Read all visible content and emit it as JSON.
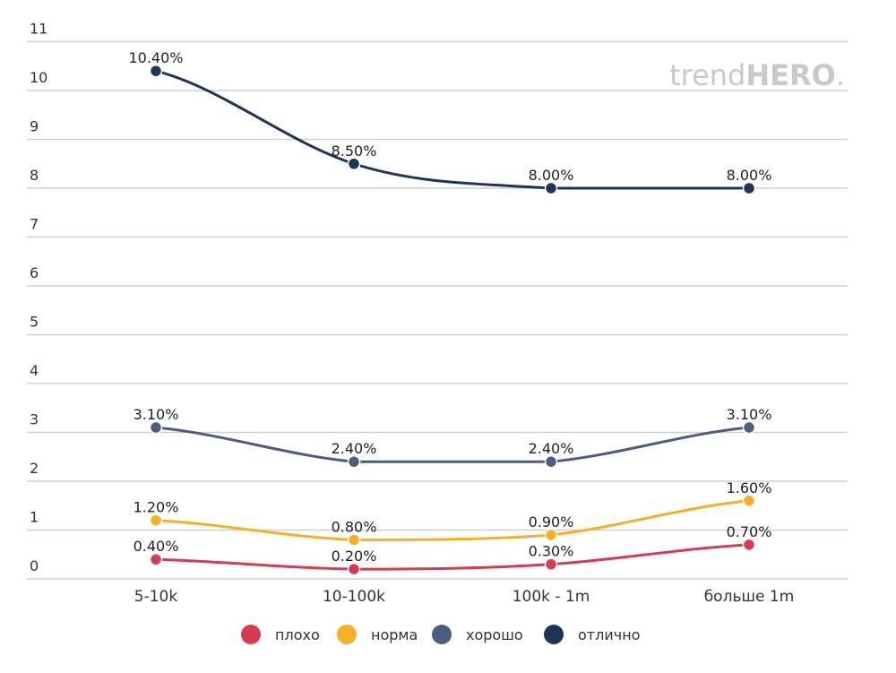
{
  "watermark": {
    "light": "trend",
    "bold": "HERO",
    "dot": "."
  },
  "chart_data": {
    "type": "line",
    "categories": [
      "5-10k",
      "10-100k",
      "100k - 1m",
      "больше 1m"
    ],
    "ylim": [
      0,
      11
    ],
    "yticks": [
      0,
      1,
      2,
      3,
      4,
      5,
      6,
      7,
      8,
      9,
      10,
      11
    ],
    "grid": true,
    "legend_position": "bottom",
    "series": [
      {
        "name": "плохо",
        "color": "#d63b50",
        "values": [
          0.4,
          0.2,
          0.3,
          0.7
        ],
        "labels": [
          "0.40%",
          "0.20%",
          "0.30%",
          "0.70%"
        ]
      },
      {
        "name": "норма",
        "color": "#f5b027",
        "values": [
          1.2,
          0.8,
          0.9,
          1.6
        ],
        "labels": [
          "1.20%",
          "0.80%",
          "0.90%",
          "1.60%"
        ]
      },
      {
        "name": "хорошо",
        "color": "#4b5e7e",
        "values": [
          3.1,
          2.4,
          2.4,
          3.1
        ],
        "labels": [
          "3.10%",
          "2.40%",
          "2.40%",
          "3.10%"
        ]
      },
      {
        "name": "отлично",
        "color": "#1e3558",
        "values": [
          10.4,
          8.5,
          8.0,
          8.0
        ],
        "labels": [
          "10.40%",
          "8.50%",
          "8.00%",
          "8.00%"
        ]
      }
    ]
  }
}
